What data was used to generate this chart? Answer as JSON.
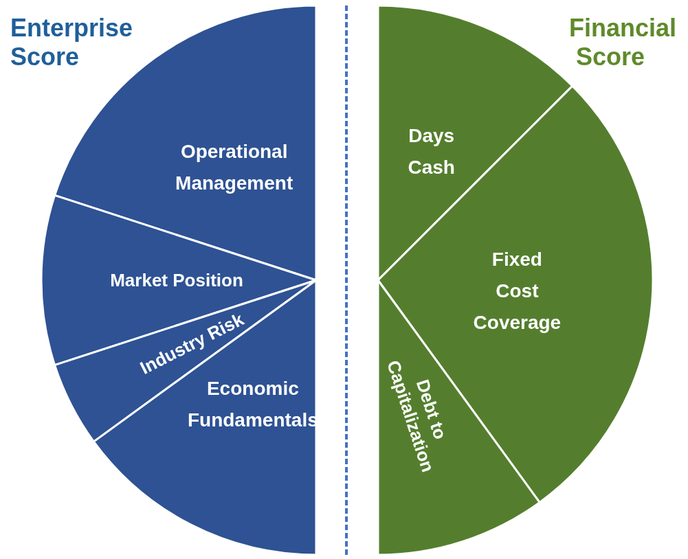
{
  "chart_data": [
    {
      "type": "pie",
      "title": "Enterprise Score",
      "categories": [
        "Operational Management",
        "Market Position",
        "Industry Risk",
        "Economic Fundamentals"
      ],
      "values": [
        40,
        20,
        10,
        30
      ],
      "colors": [
        "#2e5293",
        "#2e5293",
        "#2e5293",
        "#2e5293"
      ],
      "legend": false
    },
    {
      "type": "pie",
      "title": "Financial Score",
      "categories": [
        "Days Cash",
        "Fixed Cost Coverage",
        "Debt to Capitalization"
      ],
      "values": [
        25,
        55,
        20
      ],
      "colors": [
        "#547e2e",
        "#547e2e",
        "#547e2e"
      ],
      "legend": false
    }
  ]
}
